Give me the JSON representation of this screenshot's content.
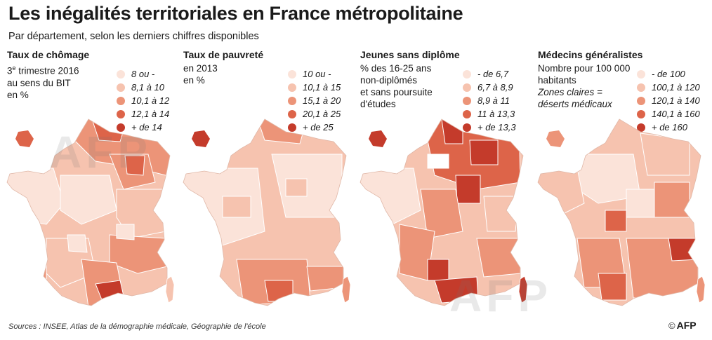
{
  "title": "Les inégalités territoriales en France métropolitaine",
  "subtitle": "Par département, selon les derniers chiffres disponibles",
  "colors": {
    "c1": "#fbe3d9",
    "c2": "#f6c3af",
    "c3": "#ec9478",
    "c4": "#dd6449",
    "c5": "#c43b2b",
    "border": "#ffffff"
  },
  "panels": [
    {
      "heading": "Taux de chômage",
      "desc_line1_main": "3",
      "desc_line1_sup": "e",
      "desc_line1_rest": " trimestre 2016",
      "desc_line2": "au sens du BIT",
      "desc_line3": "en %",
      "legend": [
        "8 ou -",
        "8,1 à 10",
        "10,1 à 12",
        "12,1 à 14",
        "+ de 14"
      ]
    },
    {
      "heading": "Taux de pauvreté",
      "desc_line1": "en 2013",
      "desc_line2": "en %",
      "legend": [
        "10 ou -",
        "10,1 à 15",
        "15,1 à 20",
        "20,1 à 25",
        "+ de 25"
      ]
    },
    {
      "heading": "Jeunes sans diplôme",
      "desc_line1": "% des 16-25 ans",
      "desc_line2": "non-diplômés",
      "desc_line3": "et sans poursuite",
      "desc_line4": "d'études",
      "legend": [
        "- de 6,7",
        "6,7 à 8,9",
        "8,9 à 11",
        "11 à 13,3",
        "+ de 13,3"
      ]
    },
    {
      "heading": "Médecins généralistes",
      "desc_line1": "Nombre pour 100 000",
      "desc_line2": "habitants",
      "desc_line3": "Zones claires =",
      "desc_line4": "déserts médicaux",
      "legend": [
        "- de 100",
        "100,1 à 120",
        "120,1 à 140",
        "140,1 à 160",
        "+ de 160"
      ]
    }
  ],
  "footer": "Sources : INSEE, Atlas de la démographie médicale, Géographie de l'école",
  "credit_symbol": "©",
  "credit": "AFP"
}
